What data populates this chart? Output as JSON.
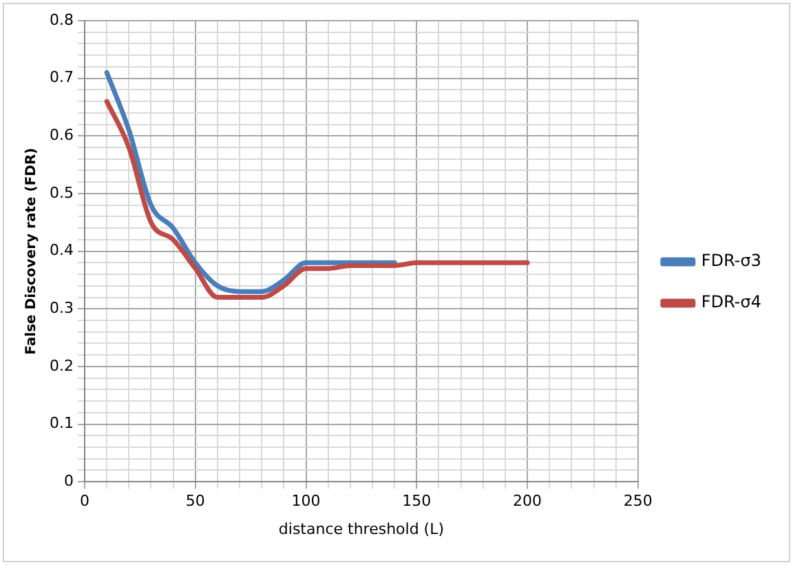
{
  "chart_data": {
    "type": "line",
    "xlabel": "distance threshold (L)",
    "ylabel": "False Discovery rate (FDR)",
    "x": [
      10,
      20,
      30,
      40,
      50,
      60,
      70,
      80,
      90,
      100,
      110,
      120,
      130,
      140,
      150,
      160,
      170,
      180,
      190,
      200
    ],
    "series": [
      {
        "name": "FDR-σ3",
        "color": "#4a7ebb",
        "values": [
          0.71,
          0.61,
          0.48,
          0.44,
          0.38,
          0.34,
          0.33,
          0.33,
          0.35,
          0.38,
          0.38,
          0.38,
          0.38,
          0.38,
          null,
          null,
          null,
          null,
          null,
          null
        ]
      },
      {
        "name": "FDR-σ4",
        "color": "#be4b48",
        "values": [
          0.66,
          0.58,
          0.45,
          0.42,
          0.37,
          0.32,
          0.32,
          0.32,
          0.34,
          0.37,
          0.37,
          0.375,
          0.375,
          0.375,
          0.38,
          0.38,
          0.38,
          0.38,
          0.38,
          0.38
        ]
      }
    ],
    "xlim": [
      0,
      250
    ],
    "xticks": [
      0,
      {
        "value": 10,
        "label": null
      },
      {
        "value": 20,
        "label": null
      },
      {
        "value": 30,
        "label": null
      },
      {
        "value": 40,
        "label": null
      },
      50,
      {
        "value": 60,
        "label": null
      },
      {
        "value": 70,
        "label": null
      },
      {
        "value": 80,
        "label": null
      },
      {
        "value": 90,
        "label": null
      },
      100,
      {
        "value": 110,
        "label": null
      },
      {
        "value": 120,
        "label": null
      },
      {
        "value": 130,
        "label": null
      },
      {
        "value": 140,
        "label": null
      },
      150,
      {
        "value": 160,
        "label": null
      },
      {
        "value": 170,
        "label": null
      },
      {
        "value": 180,
        "label": null
      },
      {
        "value": 190,
        "label": null
      },
      200,
      {
        "value": 210,
        "label": null
      },
      {
        "value": 220,
        "label": null
      },
      {
        "value": 230,
        "label": null
      },
      {
        "value": 240,
        "label": null
      },
      250
    ],
    "ylim": [
      0,
      0.8
    ],
    "yticks": [
      0,
      {
        "value": 0.02,
        "label": null
      },
      {
        "value": 0.04,
        "label": null
      },
      {
        "value": 0.06,
        "label": null
      },
      {
        "value": 0.08,
        "label": null
      },
      0.1,
      {
        "value": 0.12,
        "label": null
      },
      {
        "value": 0.14,
        "label": null
      },
      {
        "value": 0.16,
        "label": null
      },
      {
        "value": 0.18,
        "label": null
      },
      0.2,
      {
        "value": 0.22,
        "label": null
      },
      {
        "value": 0.24,
        "label": null
      },
      {
        "value": 0.26,
        "label": null
      },
      {
        "value": 0.28,
        "label": null
      },
      0.3,
      {
        "value": 0.32,
        "label": null
      },
      {
        "value": 0.34,
        "label": null
      },
      {
        "value": 0.36,
        "label": null
      },
      {
        "value": 0.38,
        "label": null
      },
      0.4,
      {
        "value": 0.42,
        "label": null
      },
      {
        "value": 0.44,
        "label": null
      },
      {
        "value": 0.46,
        "label": null
      },
      {
        "value": 0.48,
        "label": null
      },
      0.5,
      {
        "value": 0.52,
        "label": null
      },
      {
        "value": 0.54,
        "label": null
      },
      {
        "value": 0.56,
        "label": null
      },
      {
        "value": 0.58,
        "label": null
      },
      0.6,
      {
        "value": 0.62,
        "label": null
      },
      {
        "value": 0.64,
        "label": null
      },
      {
        "value": 0.66,
        "label": null
      },
      {
        "value": 0.68,
        "label": null
      },
      0.7,
      {
        "value": 0.72,
        "label": null
      },
      {
        "value": 0.74,
        "label": null
      },
      {
        "value": 0.76,
        "label": null
      },
      {
        "value": 0.78,
        "label": null
      },
      0.8
    ],
    "grid": true,
    "legend": "right",
    "marker": "none",
    "line_style": "solid"
  }
}
